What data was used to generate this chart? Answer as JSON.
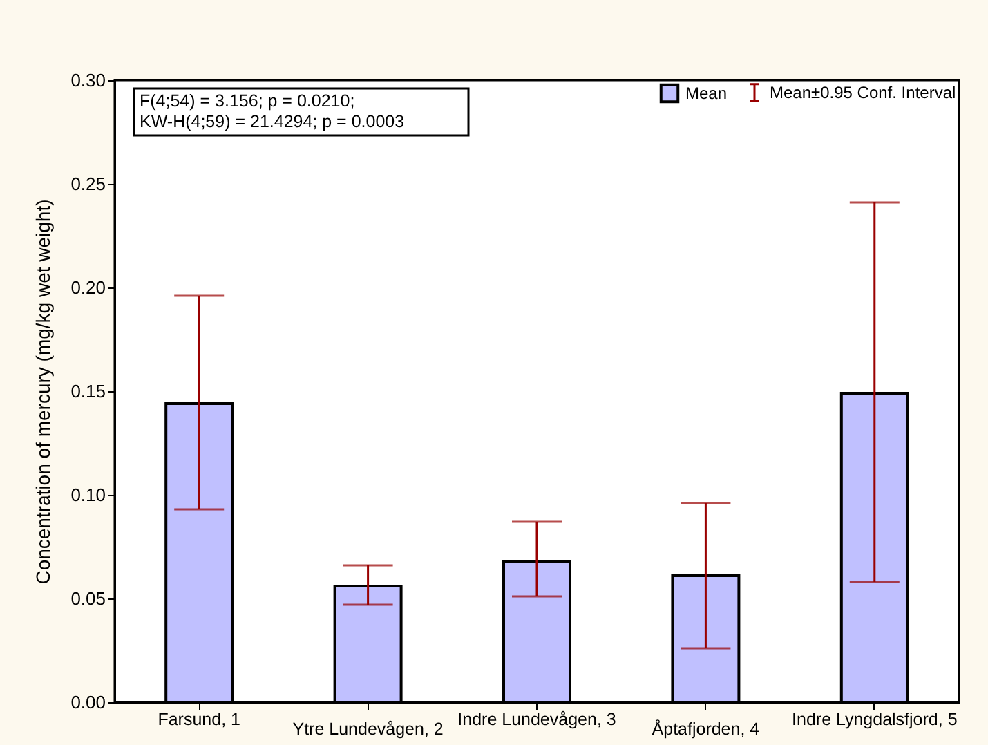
{
  "chart_data": {
    "type": "bar",
    "ylabel": "Concentration of mercury (mg/kg wet weight)",
    "categories": [
      "Farsund, 1",
      "Ytre Lundevågen, 2",
      "Indre Lundevågen, 3",
      "Åptafjorden, 4",
      "Indre Lyngdalsfjord, 5"
    ],
    "series": [
      {
        "name": "Mean",
        "color": "#c0c0ff",
        "values": [
          0.144,
          0.056,
          0.068,
          0.061,
          0.149
        ],
        "errors": [
          [
            0.093,
            0.196
          ],
          [
            0.047,
            0.066
          ],
          [
            0.051,
            0.087
          ],
          [
            0.026,
            0.096
          ],
          [
            0.058,
            0.241
          ]
        ]
      }
    ],
    "ylim": [
      0,
      0.3
    ],
    "yticks": [
      {
        "value": 0,
        "label": "0.00"
      },
      {
        "value": 0.05,
        "label": "0.05"
      },
      {
        "value": 0.1,
        "label": "0.10"
      },
      {
        "value": 0.15,
        "label": "0.15"
      },
      {
        "value": 0.2,
        "label": "0.20"
      },
      {
        "value": 0.25,
        "label": "0.25"
      },
      {
        "value": 0.3,
        "label": "0.30"
      }
    ],
    "annotations": [
      "F(4;54) = 3.156; p = 0.0210;",
      "KW-H(4;59) = 21.4294; p = 0.0003",
      "Mean±0.95 Conf. Interval"
    ],
    "legend": "top right",
    "grid": false
  }
}
